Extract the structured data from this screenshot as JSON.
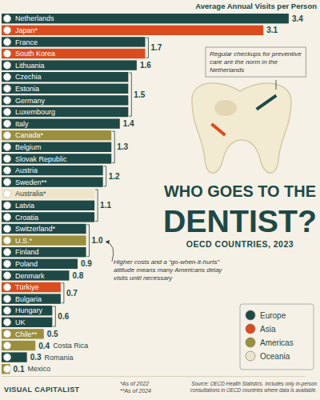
{
  "chart_data": {
    "type": "bar",
    "orientation": "horizontal",
    "title": "WHO GOES TO THE DENTIST?",
    "subtitle": "OECD COUNTRIES, 2023",
    "xlabel": "Average Annual Visits per Person",
    "categories": [
      "Netherlands",
      "Japan*",
      "France",
      "South Korea",
      "Lithuania",
      "Czechia",
      "Estonia",
      "Germany",
      "Luxembourg",
      "Italy",
      "Canada*",
      "Belgium",
      "Slovak Republic",
      "Austria",
      "Sweden**",
      "Australia*",
      "Latvia",
      "Croatia",
      "Switzerland*",
      "U.S.*",
      "Finland",
      "Poland",
      "Denmark",
      "Türkiye",
      "Bulgaria",
      "Hungary",
      "UK",
      "Chile**",
      "Costa Rica",
      "Romania",
      "Mexico"
    ],
    "series": [
      {
        "name": "Europe",
        "color": "#1e4947",
        "values": [
          3.4,
          null,
          1.7,
          null,
          1.6,
          1.5,
          1.5,
          1.5,
          1.5,
          1.4,
          null,
          1.3,
          1.3,
          1.2,
          1.2,
          null,
          1.1,
          1.1,
          1.0,
          null,
          1.0,
          0.9,
          0.8,
          null,
          0.7,
          0.6,
          0.6,
          null,
          null,
          0.3,
          null
        ],
        "value_labels": [
          "3.4",
          null,
          "1.7",
          null,
          "1.6",
          "1.5",
          null,
          null,
          null,
          "1.4",
          null,
          null,
          null,
          "1.2",
          null,
          null,
          null,
          null,
          "1.0",
          null,
          null,
          "0.9",
          "0.8",
          null,
          null,
          "0.6",
          null,
          null,
          null,
          "0.3",
          null
        ]
      },
      {
        "name": "Asia",
        "color": "#d94c1f",
        "values": [
          null,
          3.1,
          null,
          1.7,
          null,
          null,
          null,
          null,
          null,
          null,
          null,
          null,
          null,
          null,
          null,
          null,
          null,
          null,
          null,
          null,
          null,
          null,
          null,
          0.7,
          null,
          null,
          null,
          null,
          null,
          null,
          null
        ],
        "value_labels": [
          null,
          "3.1",
          null,
          null,
          null,
          null,
          null,
          null,
          null,
          null,
          null,
          null,
          null,
          null,
          null,
          null,
          null,
          null,
          null,
          null,
          null,
          null,
          null,
          "0.7",
          null,
          null,
          null,
          null,
          null,
          null,
          null
        ]
      },
      {
        "name": "Americas",
        "color": "#9b8f3e",
        "values": [
          null,
          null,
          null,
          null,
          null,
          null,
          null,
          null,
          null,
          null,
          1.3,
          null,
          null,
          null,
          null,
          null,
          null,
          null,
          null,
          1.0,
          null,
          null,
          null,
          null,
          null,
          null,
          null,
          0.5,
          0.4,
          null,
          0.1
        ],
        "value_labels": [
          null,
          null,
          null,
          null,
          null,
          null,
          null,
          null,
          null,
          null,
          "1.3",
          null,
          null,
          null,
          null,
          null,
          null,
          null,
          null,
          null,
          null,
          null,
          null,
          null,
          null,
          null,
          null,
          "0.5",
          "0.4",
          null,
          "0.1"
        ]
      },
      {
        "name": "Oceania",
        "color": "#efe5cb",
        "values": [
          null,
          null,
          null,
          null,
          null,
          null,
          null,
          null,
          null,
          null,
          null,
          null,
          null,
          null,
          null,
          1.1,
          null,
          null,
          null,
          null,
          null,
          null,
          null,
          null,
          null,
          null,
          null,
          null,
          null,
          null,
          null
        ],
        "value_labels": [
          null,
          null,
          null,
          null,
          null,
          null,
          null,
          null,
          null,
          null,
          null,
          null,
          null,
          null,
          null,
          "1.1",
          null,
          null,
          null,
          null,
          null,
          null,
          null,
          null,
          null,
          null,
          null,
          null,
          null,
          null,
          null
        ]
      }
    ],
    "xlim": [
      0,
      3.6
    ],
    "xticks": [],
    "data_labels": true,
    "tick_labels": "y",
    "legend": "bottom-right",
    "annotations": [
      "Regular checkups for preventive care are the norm in the Netherlands",
      "Higher costs and a “go-when-it-hurts” attitude means many Americans delay visits until necessary"
    ],
    "notes": [
      "*As of 2022",
      "**As of 2024"
    ],
    "source": "Source: OECD Health Statistics. Includes only in-person consultations in OECD countries where data is available.",
    "brand": "VISUAL CAPITALIST"
  }
}
